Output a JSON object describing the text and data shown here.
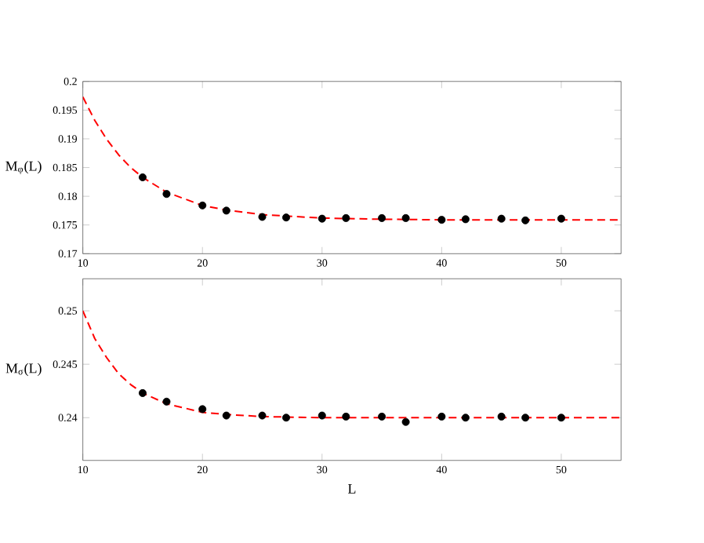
{
  "chart_data": [
    {
      "type": "scatter",
      "ylabel": "M$_{φ}$(L)",
      "xlim": [
        10,
        55
      ],
      "xticks": [
        10,
        20,
        30,
        40,
        50
      ],
      "ylim": [
        0.17,
        0.2
      ],
      "yticks": [
        0.17,
        0.175,
        0.18,
        0.185,
        0.19,
        0.195,
        0.2
      ],
      "series": [
        {
          "type": "scatter",
          "marker": "circle",
          "color": "#000000",
          "x": [
            15,
            17,
            20,
            22,
            25,
            27,
            30,
            32,
            35,
            37,
            40,
            42,
            45,
            47,
            50
          ],
          "values": [
            0.1833,
            0.1804,
            0.1784,
            0.1775,
            0.1764,
            0.1763,
            0.1761,
            0.1762,
            0.1762,
            0.1762,
            0.1759,
            0.176,
            0.1761,
            0.1758,
            0.1761
          ]
        },
        {
          "type": "line",
          "line_style": "dashed",
          "marker": "none",
          "color": "#ff0000",
          "x": [
            10,
            11,
            12,
            13,
            14,
            15,
            17,
            20,
            22,
            25,
            30,
            35,
            40,
            55
          ],
          "values": [
            0.1973,
            0.1932,
            0.1899,
            0.1872,
            0.185,
            0.1833,
            0.1807,
            0.1784,
            0.1776,
            0.1768,
            0.1762,
            0.176,
            0.1759,
            0.1759
          ]
        }
      ]
    },
    {
      "type": "scatter",
      "xlabel": "L",
      "ylabel": "M$_{σ}$(L)",
      "xlim": [
        10,
        55
      ],
      "xticks": [
        10,
        20,
        30,
        40,
        50
      ],
      "ylim": [
        0.236,
        0.253
      ],
      "yticks": [
        0.24,
        0.245,
        0.25
      ],
      "series": [
        {
          "type": "scatter",
          "marker": "circle",
          "color": "#000000",
          "x": [
            15,
            17,
            20,
            22,
            25,
            27,
            30,
            32,
            35,
            37,
            40,
            42,
            45,
            47,
            50
          ],
          "values": [
            0.2423,
            0.2415,
            0.2408,
            0.2402,
            0.2402,
            0.24,
            0.2402,
            0.2401,
            0.2401,
            0.2396,
            0.2401,
            0.24,
            0.2401,
            0.24,
            0.24
          ]
        },
        {
          "type": "line",
          "line_style": "dashed",
          "marker": "none",
          "color": "#ff0000",
          "x": [
            10,
            11,
            12,
            13,
            14,
            15,
            17,
            20,
            22,
            25,
            30,
            55
          ],
          "values": [
            0.25,
            0.2474,
            0.2456,
            0.2441,
            0.2431,
            0.2423,
            0.2413,
            0.2405,
            0.2403,
            0.2401,
            0.24,
            0.24
          ]
        }
      ]
    }
  ]
}
